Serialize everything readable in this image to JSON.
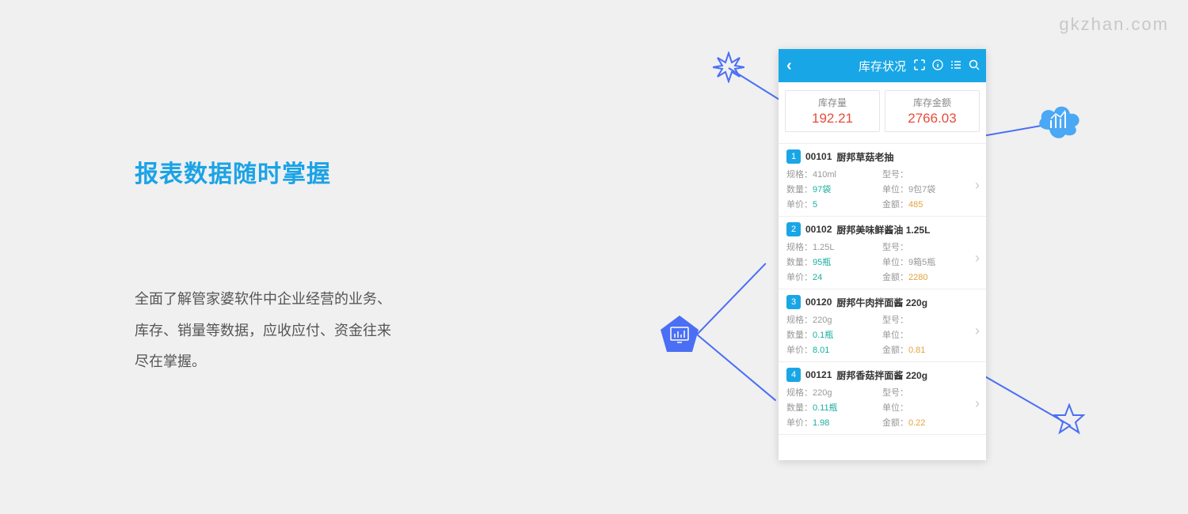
{
  "watermark": "gkzhan.com",
  "left": {
    "title": "报表数据随时掌握",
    "desc_line1": "全面了解管家婆软件中企业经营的业务、",
    "desc_line2": "库存、销量等数据，应收应付、资金往来",
    "desc_line3": "尽在掌握。"
  },
  "phone": {
    "header_title": "库存状况",
    "summary": [
      {
        "label": "库存量",
        "value": "192.21"
      },
      {
        "label": "库存金额",
        "value": "2766.03"
      }
    ],
    "field_labels": {
      "spec": "规格：",
      "model": "型号：",
      "qty": "数量：",
      "unit": "单位：",
      "price": "单价：",
      "amount": "金额："
    },
    "items": [
      {
        "idx": "1",
        "code": "00101",
        "name": "厨邦草菇老抽",
        "spec": "410ml",
        "model": "",
        "qty": "97袋",
        "unit": "9包7袋",
        "price": "5",
        "amount": "485"
      },
      {
        "idx": "2",
        "code": "00102",
        "name": "厨邦美味鲜酱油 1.25L",
        "spec": "1.25L",
        "model": "",
        "qty": "95瓶",
        "unit": "9箱5瓶",
        "price": "24",
        "amount": "2280"
      },
      {
        "idx": "3",
        "code": "00120",
        "name": "厨邦牛肉拌面酱 220g",
        "spec": "220g",
        "model": "",
        "qty": "0.1瓶",
        "unit": "",
        "price": "8.01",
        "amount": "0.81"
      },
      {
        "idx": "4",
        "code": "00121",
        "name": "厨邦香菇拌面酱 220g",
        "spec": "220g",
        "model": "",
        "qty": "0.11瓶",
        "unit": "",
        "price": "1.98",
        "amount": "0.22"
      }
    ]
  },
  "colors": {
    "accent": "#19a6e6",
    "bg": "#f0f0f0",
    "title": "#1ba3e6",
    "summary_red": "#e74c3c",
    "teal": "#1aae9f",
    "orange": "#e6a23c",
    "connector": "#4a6ff5",
    "pentagon_fill": "#4a6ff5",
    "cloud_fill": "#4aa8f5"
  }
}
